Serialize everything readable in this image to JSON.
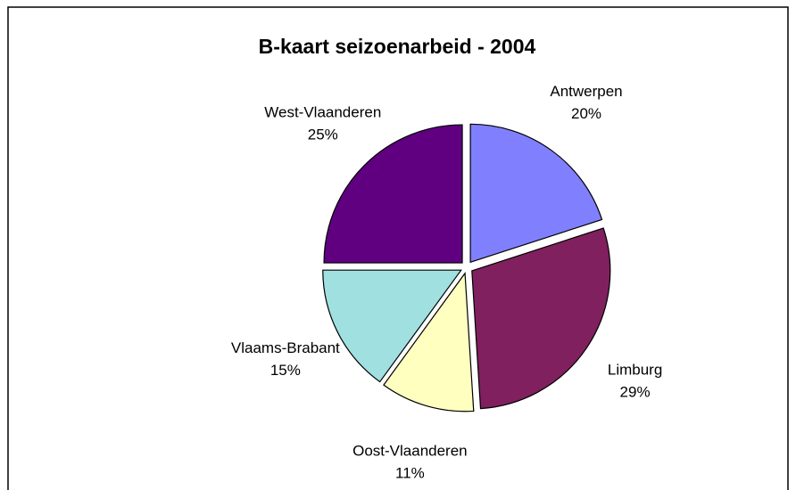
{
  "chart_data": {
    "type": "pie",
    "title": "B-kaart seizoenarbeid - 2004",
    "categories": [
      "Antwerpen",
      "Limburg",
      "Oost-Vlaanderen",
      "Vlaams-Brabant",
      "West-Vlaanderen"
    ],
    "values": [
      20,
      29,
      11,
      15,
      25
    ],
    "value_labels": [
      "20%",
      "29%",
      "11%",
      "15%",
      "25%"
    ],
    "colors": [
      "#8080ff",
      "#80205f",
      "#ffffc0",
      "#a0e0e0",
      "#600080"
    ]
  }
}
